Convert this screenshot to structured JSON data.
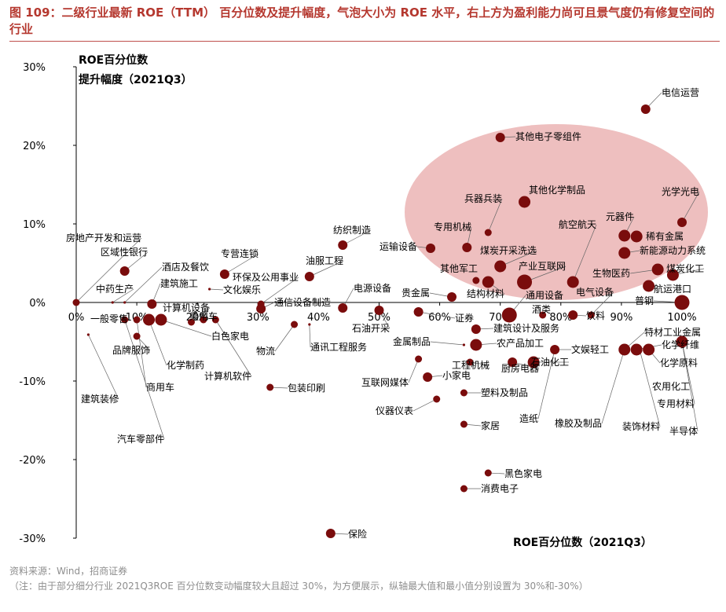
{
  "title": "图 109：二级行业最新 ROE（TTM） 百分位数及提升幅度，气泡大小为 ROE 水平，右上方为盈利能力尚可且景气度仍有修复空间的行业",
  "source": "资料来源：Wind，招商证券",
  "footnote": "（注：由于部分细分行业 2021Q3ROE 百分位数变动幅度较大且超过 30%，为方便展示，纵轴最大值和最小值分别设置为 30%和-30%）",
  "colors": {
    "bubble": "#7a0c0c",
    "highlight": "#e8a9a9",
    "title": "#b5382f",
    "leader": "#666666"
  },
  "chart_data": {
    "type": "scatter",
    "xlabel": "ROE百分位数（2021Q3）",
    "ylabel": "ROE百分位数提升幅度（2021Q3）",
    "ylabel_lines": [
      "ROE百分位数",
      "提升幅度（2021Q3）"
    ],
    "xlim": [
      0,
      100
    ],
    "ylim": [
      -30,
      30
    ],
    "x_ticks": [
      "0%",
      "10%",
      "20%",
      "30%",
      "40%",
      "50%",
      "60%",
      "70%",
      "80%",
      "90%",
      "100%"
    ],
    "y_ticks": [
      "30%",
      "20%",
      "10%",
      "0%",
      "-10%",
      "-20%",
      "-30%"
    ],
    "grid": false,
    "highlight_region": "upper-right ellipse",
    "points": [
      {
        "name": "电信运营",
        "x": 94,
        "y": 24.6,
        "size": "s"
      },
      {
        "name": "其他电子零组件",
        "x": 70,
        "y": 21,
        "size": "s"
      },
      {
        "name": "光学光电",
        "x": 100,
        "y": 10.2,
        "size": "s"
      },
      {
        "name": "其他化学制品",
        "x": 74,
        "y": 12.8,
        "size": "m"
      },
      {
        "name": "兵器兵装",
        "x": 68,
        "y": 8.9,
        "size": "xs"
      },
      {
        "name": "元器件",
        "x": 90.5,
        "y": 8.5,
        "size": "m"
      },
      {
        "name": "稀有金属",
        "x": 92.5,
        "y": 8.4,
        "size": "m"
      },
      {
        "name": "新能源动力系统",
        "x": 90.5,
        "y": 6.3,
        "size": "m"
      },
      {
        "name": "专用机械",
        "x": 64.5,
        "y": 7,
        "size": "s"
      },
      {
        "name": "运输设备",
        "x": 58.5,
        "y": 6.9,
        "size": "s"
      },
      {
        "name": "煤炭开采洗选",
        "x": 70,
        "y": 4.6,
        "size": "m"
      },
      {
        "name": "航空航天",
        "x": 82,
        "y": 2.6,
        "size": "m"
      },
      {
        "name": "产业互联网",
        "x": 74,
        "y": 2.6,
        "size": "l"
      },
      {
        "name": "其他军工",
        "x": 66,
        "y": 2.8,
        "size": "xs"
      },
      {
        "name": "生物医药",
        "x": 96,
        "y": 4.2,
        "size": "m"
      },
      {
        "name": "煤炭化工",
        "x": 98.5,
        "y": 3.5,
        "size": "m"
      },
      {
        "name": "航运港口",
        "x": 94.5,
        "y": 2.1,
        "size": "m"
      },
      {
        "name": "普钢",
        "x": 100,
        "y": 0,
        "size": "l"
      },
      {
        "name": "结构材料",
        "x": 68,
        "y": 2.6,
        "size": "m"
      },
      {
        "name": "贵金属",
        "x": 62,
        "y": 0.7,
        "size": "s"
      },
      {
        "name": "通用设备",
        "x": 71.5,
        "y": -1.6,
        "size": "l"
      },
      {
        "name": "电气设备",
        "x": 85,
        "y": -1.6,
        "size": "xs"
      },
      {
        "name": "饮料",
        "x": 82,
        "y": -1.6,
        "size": "s"
      },
      {
        "name": "酒类",
        "x": 77,
        "y": -1.6,
        "size": "xs"
      },
      {
        "name": "电源设备",
        "x": 44,
        "y": -0.7,
        "size": "s"
      },
      {
        "name": "纺织制造",
        "x": 44,
        "y": 7.3,
        "size": "s"
      },
      {
        "name": "油服工程",
        "x": 38.5,
        "y": 3.3,
        "size": "s"
      },
      {
        "name": "专营连锁",
        "x": 24.5,
        "y": 3.6,
        "size": "s"
      },
      {
        "name": "文化娱乐",
        "x": 22,
        "y": 1.7,
        "size": "dot"
      },
      {
        "name": "环保及公用事业",
        "x": 30.5,
        "y": -0.2,
        "size": "xs"
      },
      {
        "name": "通信设备制造",
        "x": 30.5,
        "y": -0.8,
        "size": "s"
      },
      {
        "name": "石油开采",
        "x": 50,
        "y": -1,
        "size": "s"
      },
      {
        "name": "证券",
        "x": 56.5,
        "y": -1.2,
        "size": "s"
      },
      {
        "name": "建筑设计及服务",
        "x": 66,
        "y": -3.4,
        "size": "s"
      },
      {
        "name": "金属制品",
        "x": 64,
        "y": -5.4,
        "size": "dot"
      },
      {
        "name": "农产品加工",
        "x": 66,
        "y": -5.4,
        "size": "m"
      },
      {
        "name": "文娱轻工",
        "x": 79,
        "y": -6,
        "size": "s"
      },
      {
        "name": "石油化工",
        "x": 75.5,
        "y": -7.6,
        "size": "m"
      },
      {
        "name": "厨房电器",
        "x": 72,
        "y": -7.6,
        "size": "s"
      },
      {
        "name": "工程机械",
        "x": 65,
        "y": -7.6,
        "size": "xs"
      },
      {
        "name": "小家电",
        "x": 58,
        "y": -9.5,
        "size": "s"
      },
      {
        "name": "互联网媒体",
        "x": 56.5,
        "y": -7.2,
        "size": "xs"
      },
      {
        "name": "塑料及制品",
        "x": 64,
        "y": -11.5,
        "size": "xs"
      },
      {
        "name": "仪器仪表",
        "x": 59.5,
        "y": -12.3,
        "size": "xs"
      },
      {
        "name": "家居",
        "x": 64,
        "y": -15.5,
        "size": "xs"
      },
      {
        "name": "特材工业金属",
        "x": 90.5,
        "y": -6,
        "size": "m"
      },
      {
        "name": "化学纤维",
        "x": 92.5,
        "y": -6,
        "size": "m"
      },
      {
        "name": "化学原料",
        "x": 94.5,
        "y": -6,
        "size": "m"
      },
      {
        "name": "农用化工",
        "x": 100,
        "y": -5,
        "size": "m"
      },
      {
        "name": "专用材料",
        "x": 100,
        "y": -5,
        "size": "dot"
      },
      {
        "name": "半导体",
        "x": 100,
        "y": -5,
        "size": "dot"
      },
      {
        "name": "造纸",
        "x": 79,
        "y": -6,
        "size": "dot"
      },
      {
        "name": "橡胶及制品",
        "x": 90.5,
        "y": -6,
        "size": "dot"
      },
      {
        "name": "装饰材料",
        "x": 93,
        "y": -6,
        "size": "dot"
      },
      {
        "name": "黑色家电",
        "x": 68,
        "y": -21.7,
        "size": "xs"
      },
      {
        "name": "消费电子",
        "x": 64,
        "y": -23.7,
        "size": "xs"
      },
      {
        "name": "保险",
        "x": 42,
        "y": -29.4,
        "size": "s"
      },
      {
        "name": "包装印刷",
        "x": 32,
        "y": -10.8,
        "size": "xs"
      },
      {
        "name": "通讯工程服务",
        "x": 38.5,
        "y": -2.8,
        "size": "dot"
      },
      {
        "name": "物流",
        "x": 36,
        "y": -2.8,
        "size": "xs"
      },
      {
        "name": "计算机软件",
        "x": 23,
        "y": -2.2,
        "size": "xs"
      },
      {
        "name": "计算机设备",
        "x": 19,
        "y": -2.5,
        "size": "xs"
      },
      {
        "name": "乘用车",
        "x": 21,
        "y": -2.2,
        "size": "xs"
      },
      {
        "name": "白色家电",
        "x": 14,
        "y": -2.2,
        "size": "m"
      },
      {
        "name": "化学制药",
        "x": 12,
        "y": -2.2,
        "size": "m"
      },
      {
        "name": "商用车",
        "x": 10,
        "y": -2.2,
        "size": "xs"
      },
      {
        "name": "建筑施工",
        "x": 12.5,
        "y": -0.2,
        "size": "s"
      },
      {
        "name": "酒店及餐饮",
        "x": 8,
        "y": 0,
        "size": "dot"
      },
      {
        "name": "中药生产",
        "x": 6,
        "y": 0,
        "size": "dot"
      },
      {
        "name": "区域性银行",
        "x": 8,
        "y": 4,
        "size": "s"
      },
      {
        "name": "房地产开发和运营",
        "x": 0,
        "y": 0,
        "size": "xs"
      },
      {
        "name": "一般零售",
        "x": 8,
        "y": -2.2,
        "size": "xs"
      },
      {
        "name": "品牌服饰",
        "x": 10,
        "y": -4.3,
        "size": "xs"
      },
      {
        "name": "汽车零部件",
        "x": 8,
        "y": -2.2,
        "size": "dot"
      },
      {
        "name": "建筑装修",
        "x": 2,
        "y": -4.1,
        "size": "dot"
      }
    ]
  }
}
